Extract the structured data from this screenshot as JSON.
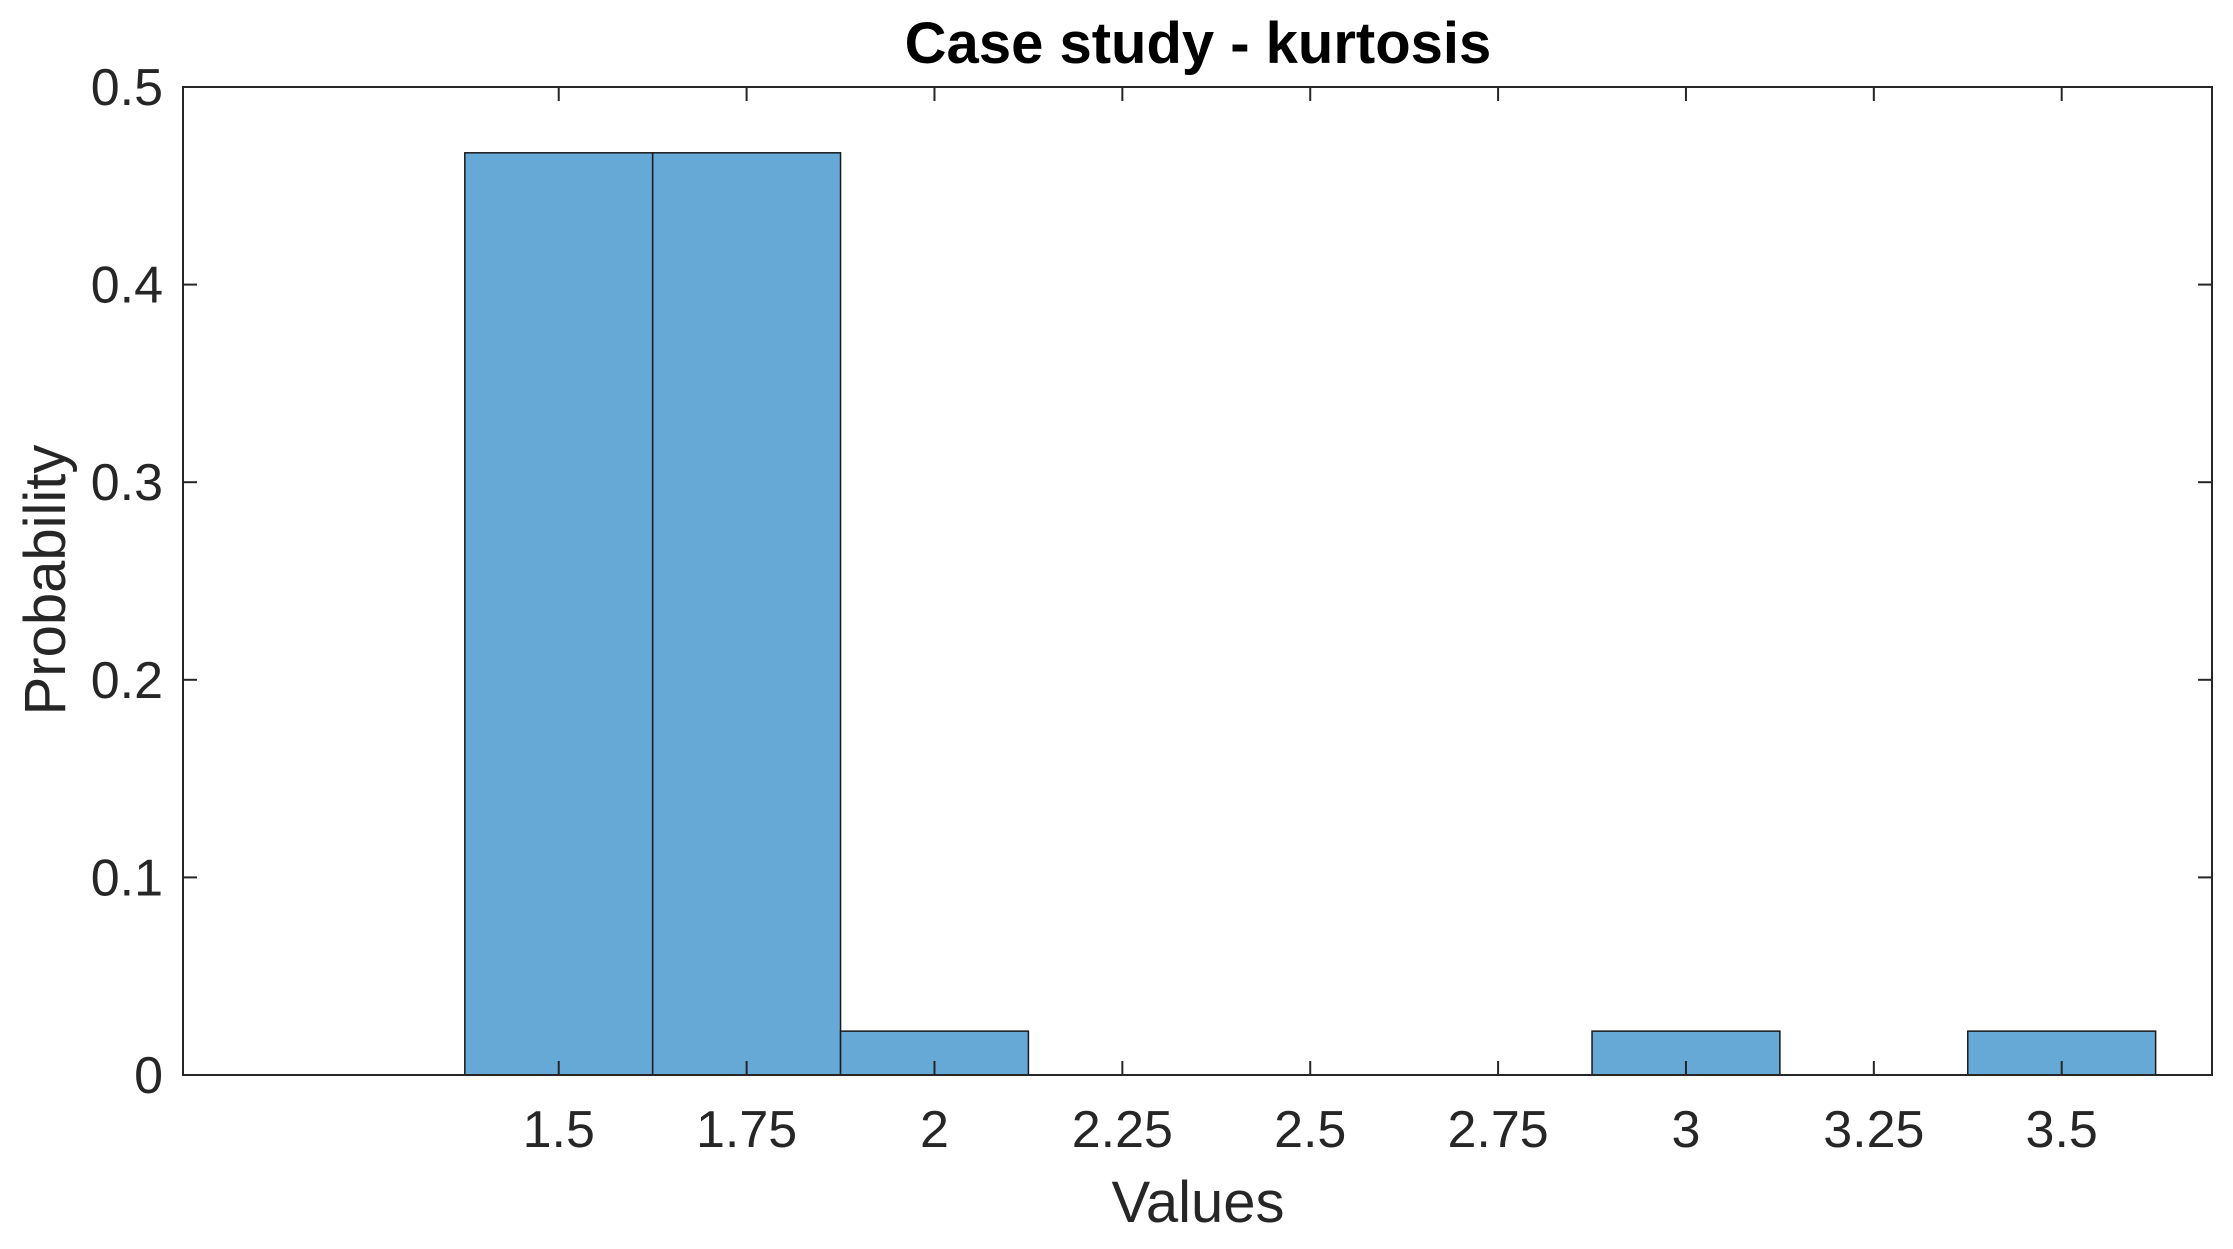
{
  "chart_data": {
    "type": "bar",
    "subtype": "histogram",
    "title": "Case study - kurtosis",
    "xlabel": "Values",
    "ylabel": "Probability",
    "bin_width": 0.25,
    "bins": [
      {
        "center": 1.5,
        "value": 0.4667
      },
      {
        "center": 1.75,
        "value": 0.4667
      },
      {
        "center": 2.0,
        "value": 0.0222
      },
      {
        "center": 3.0,
        "value": 0.0222
      },
      {
        "center": 3.5,
        "value": 0.0222
      }
    ],
    "xlim": [
      1.0,
      3.7
    ],
    "ylim": [
      0,
      0.5
    ],
    "xticks": [
      1.5,
      1.75,
      2,
      2.25,
      2.5,
      2.75,
      3,
      3.25,
      3.5
    ],
    "xtick_labels": [
      "1.5",
      "1.75",
      "2",
      "2.25",
      "2.5",
      "2.75",
      "3",
      "3.25",
      "3.5"
    ],
    "yticks": [
      0,
      0.1,
      0.2,
      0.3,
      0.4,
      0.5
    ],
    "ytick_labels": [
      "0",
      "0.1",
      "0.2",
      "0.3",
      "0.4",
      "0.5"
    ],
    "grid": false,
    "legend": false,
    "colors": {
      "bar_fill": "#66a8d6",
      "bar_edge": "#1a1a1a",
      "axis": "#262626"
    }
  }
}
